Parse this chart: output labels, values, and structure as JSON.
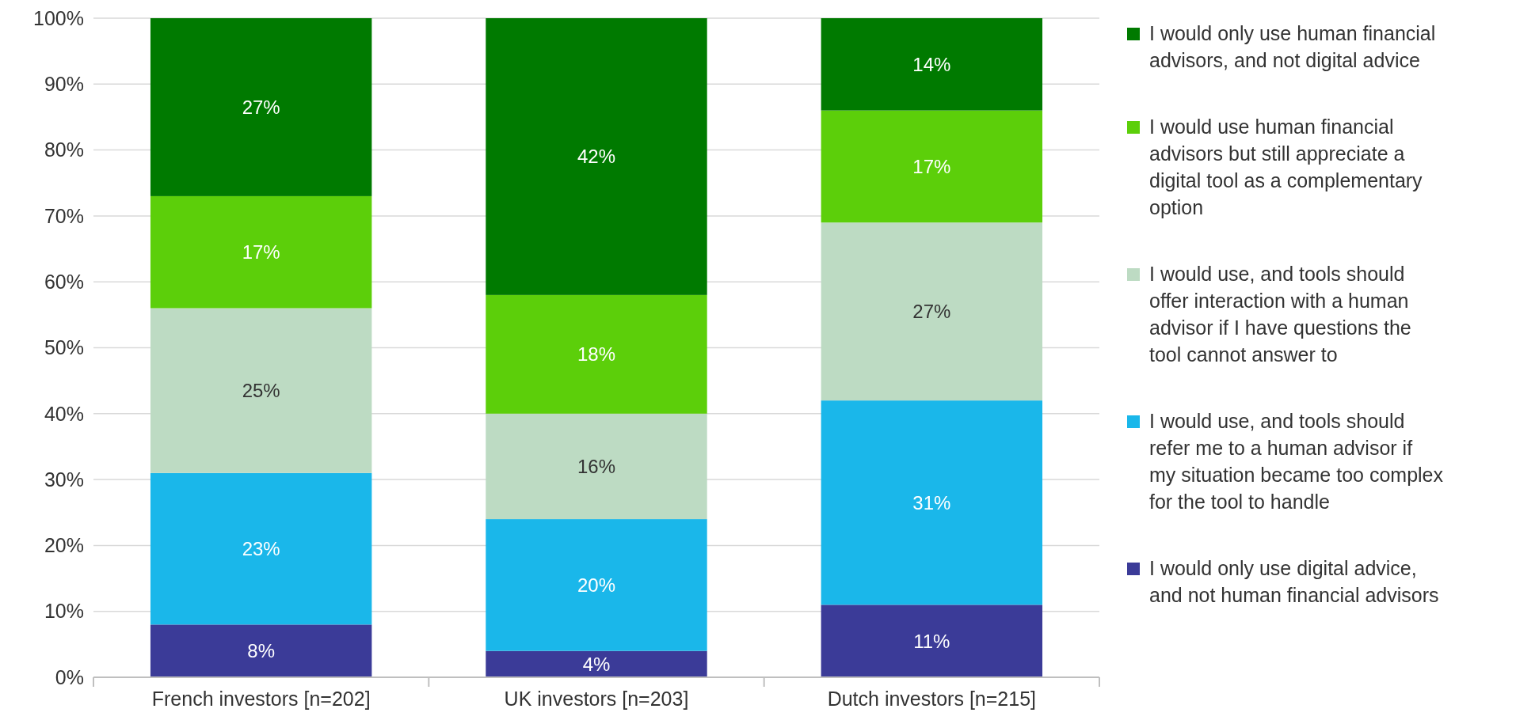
{
  "chart_data": {
    "type": "bar",
    "stacked": true,
    "categories": [
      "French investors [n=202]",
      "UK investors [n=203]",
      "Dutch investors [n=215]"
    ],
    "series": [
      {
        "name": "I would only use digital advice, and not human financial advisors",
        "color": "#3b3b98",
        "values": [
          8,
          4,
          11
        ],
        "value_labels": [
          "8%",
          "4%",
          "11%"
        ]
      },
      {
        "name": "I would use, and tools should refer me to a human advisor if my situation became too complex for the tool to handle",
        "color": "#1ab7ea",
        "values": [
          23,
          20,
          31
        ],
        "value_labels": [
          "23%",
          "20%",
          "31%"
        ]
      },
      {
        "name": "I would use, and tools should offer interaction with a human advisor if I have questions the tool cannot answer to",
        "color": "#bddbc3",
        "values": [
          25,
          16,
          27
        ],
        "value_labels": [
          "25%",
          "16%",
          "27%"
        ]
      },
      {
        "name": "I would use human financial advisors but still appreciate a digital tool as a complementary option",
        "color": "#5ccf0a",
        "values": [
          17,
          18,
          17
        ],
        "value_labels": [
          "17%",
          "18%",
          "17%"
        ]
      },
      {
        "name": "I would only use human financial advisors, and not digital advice",
        "color": "#007a00",
        "values": [
          27,
          42,
          14
        ],
        "value_labels": [
          "27%",
          "42%",
          "14%"
        ]
      }
    ],
    "ylim": [
      0,
      100
    ],
    "yticks": [
      {
        "value": 0,
        "label": "0%"
      },
      {
        "value": 10,
        "label": "10%"
      },
      {
        "value": 20,
        "label": "20%"
      },
      {
        "value": 30,
        "label": "30%"
      },
      {
        "value": 40,
        "label": "40%"
      },
      {
        "value": 50,
        "label": "50%"
      },
      {
        "value": 60,
        "label": "60%"
      },
      {
        "value": 70,
        "label": "70%"
      },
      {
        "value": 80,
        "label": "80%"
      },
      {
        "value": 90,
        "label": "90%"
      },
      {
        "value": 100,
        "label": "100%"
      }
    ],
    "grid": "y",
    "legend": "right"
  }
}
